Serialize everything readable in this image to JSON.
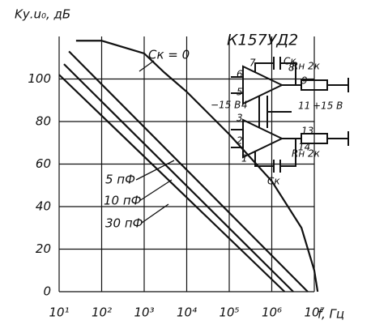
{
  "chart_data": {
    "type": "line",
    "y_label": "Kу.u₀, дБ",
    "x_label": "f, Гц",
    "log_x": true,
    "grid": true,
    "xlim": [
      10,
      10000000
    ],
    "ylim": [
      0,
      120
    ],
    "xticks": [
      {
        "value": 10,
        "label": "10¹"
      },
      {
        "value": 100,
        "label": "10²"
      },
      {
        "value": 1000,
        "label": "10³"
      },
      {
        "value": 10000,
        "label": "10⁴"
      },
      {
        "value": 100000,
        "label": "10⁵"
      },
      {
        "value": 1000000,
        "label": "10⁶"
      },
      {
        "value": 10000000,
        "label": "10⁷"
      }
    ],
    "yticks": [
      0,
      20,
      40,
      60,
      80,
      100
    ],
    "series": [
      {
        "name": "Cк = 0",
        "color": "#111",
        "x": [
          25,
          100,
          1000,
          3000,
          10000,
          100000,
          1000000,
          5000000,
          10000000,
          12000000
        ],
        "values": [
          118,
          118,
          112,
          103,
          94,
          74,
          52,
          30,
          10,
          0
        ]
      },
      {
        "name": "5 пФ",
        "color": "#111",
        "x": [
          17,
          7000000
        ],
        "values": [
          113,
          0
        ]
      },
      {
        "name": "10 пФ",
        "color": "#111",
        "x": [
          13,
          3200000
        ],
        "values": [
          107,
          0
        ]
      },
      {
        "name": "30 пФ",
        "color": "#111",
        "x": [
          10,
          2000000
        ],
        "values": [
          102,
          0
        ]
      }
    ]
  },
  "inset": {
    "title": "К157УД2",
    "labels": [
      "7",
      "8",
      "9",
      "6",
      "5",
      "4",
      "3",
      "11",
      "2",
      "13",
      "1",
      "14",
      "Cк",
      "Cк",
      "Rн 2к",
      "Rн 2к",
      "−15 В",
      "+15 В"
    ]
  }
}
